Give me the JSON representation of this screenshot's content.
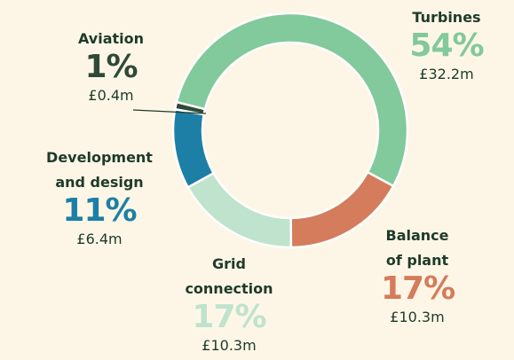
{
  "chart_data": {
    "type": "donut",
    "categories": [
      "Turbines",
      "Balance of plant",
      "Grid connection",
      "Development and design",
      "Aviation"
    ],
    "values": [
      54,
      17,
      17,
      11,
      1
    ],
    "value_labels": [
      "54%",
      "17%",
      "17%",
      "11%",
      "1%"
    ],
    "amounts": [
      "£32.2m",
      "£10.3m",
      "£10.3m",
      "£6.4m",
      "£0.4m"
    ],
    "colors": [
      "#82c99b",
      "#d47c5c",
      "#bfe3cc",
      "#1d7fa5",
      "#2e4a37"
    ]
  }
}
